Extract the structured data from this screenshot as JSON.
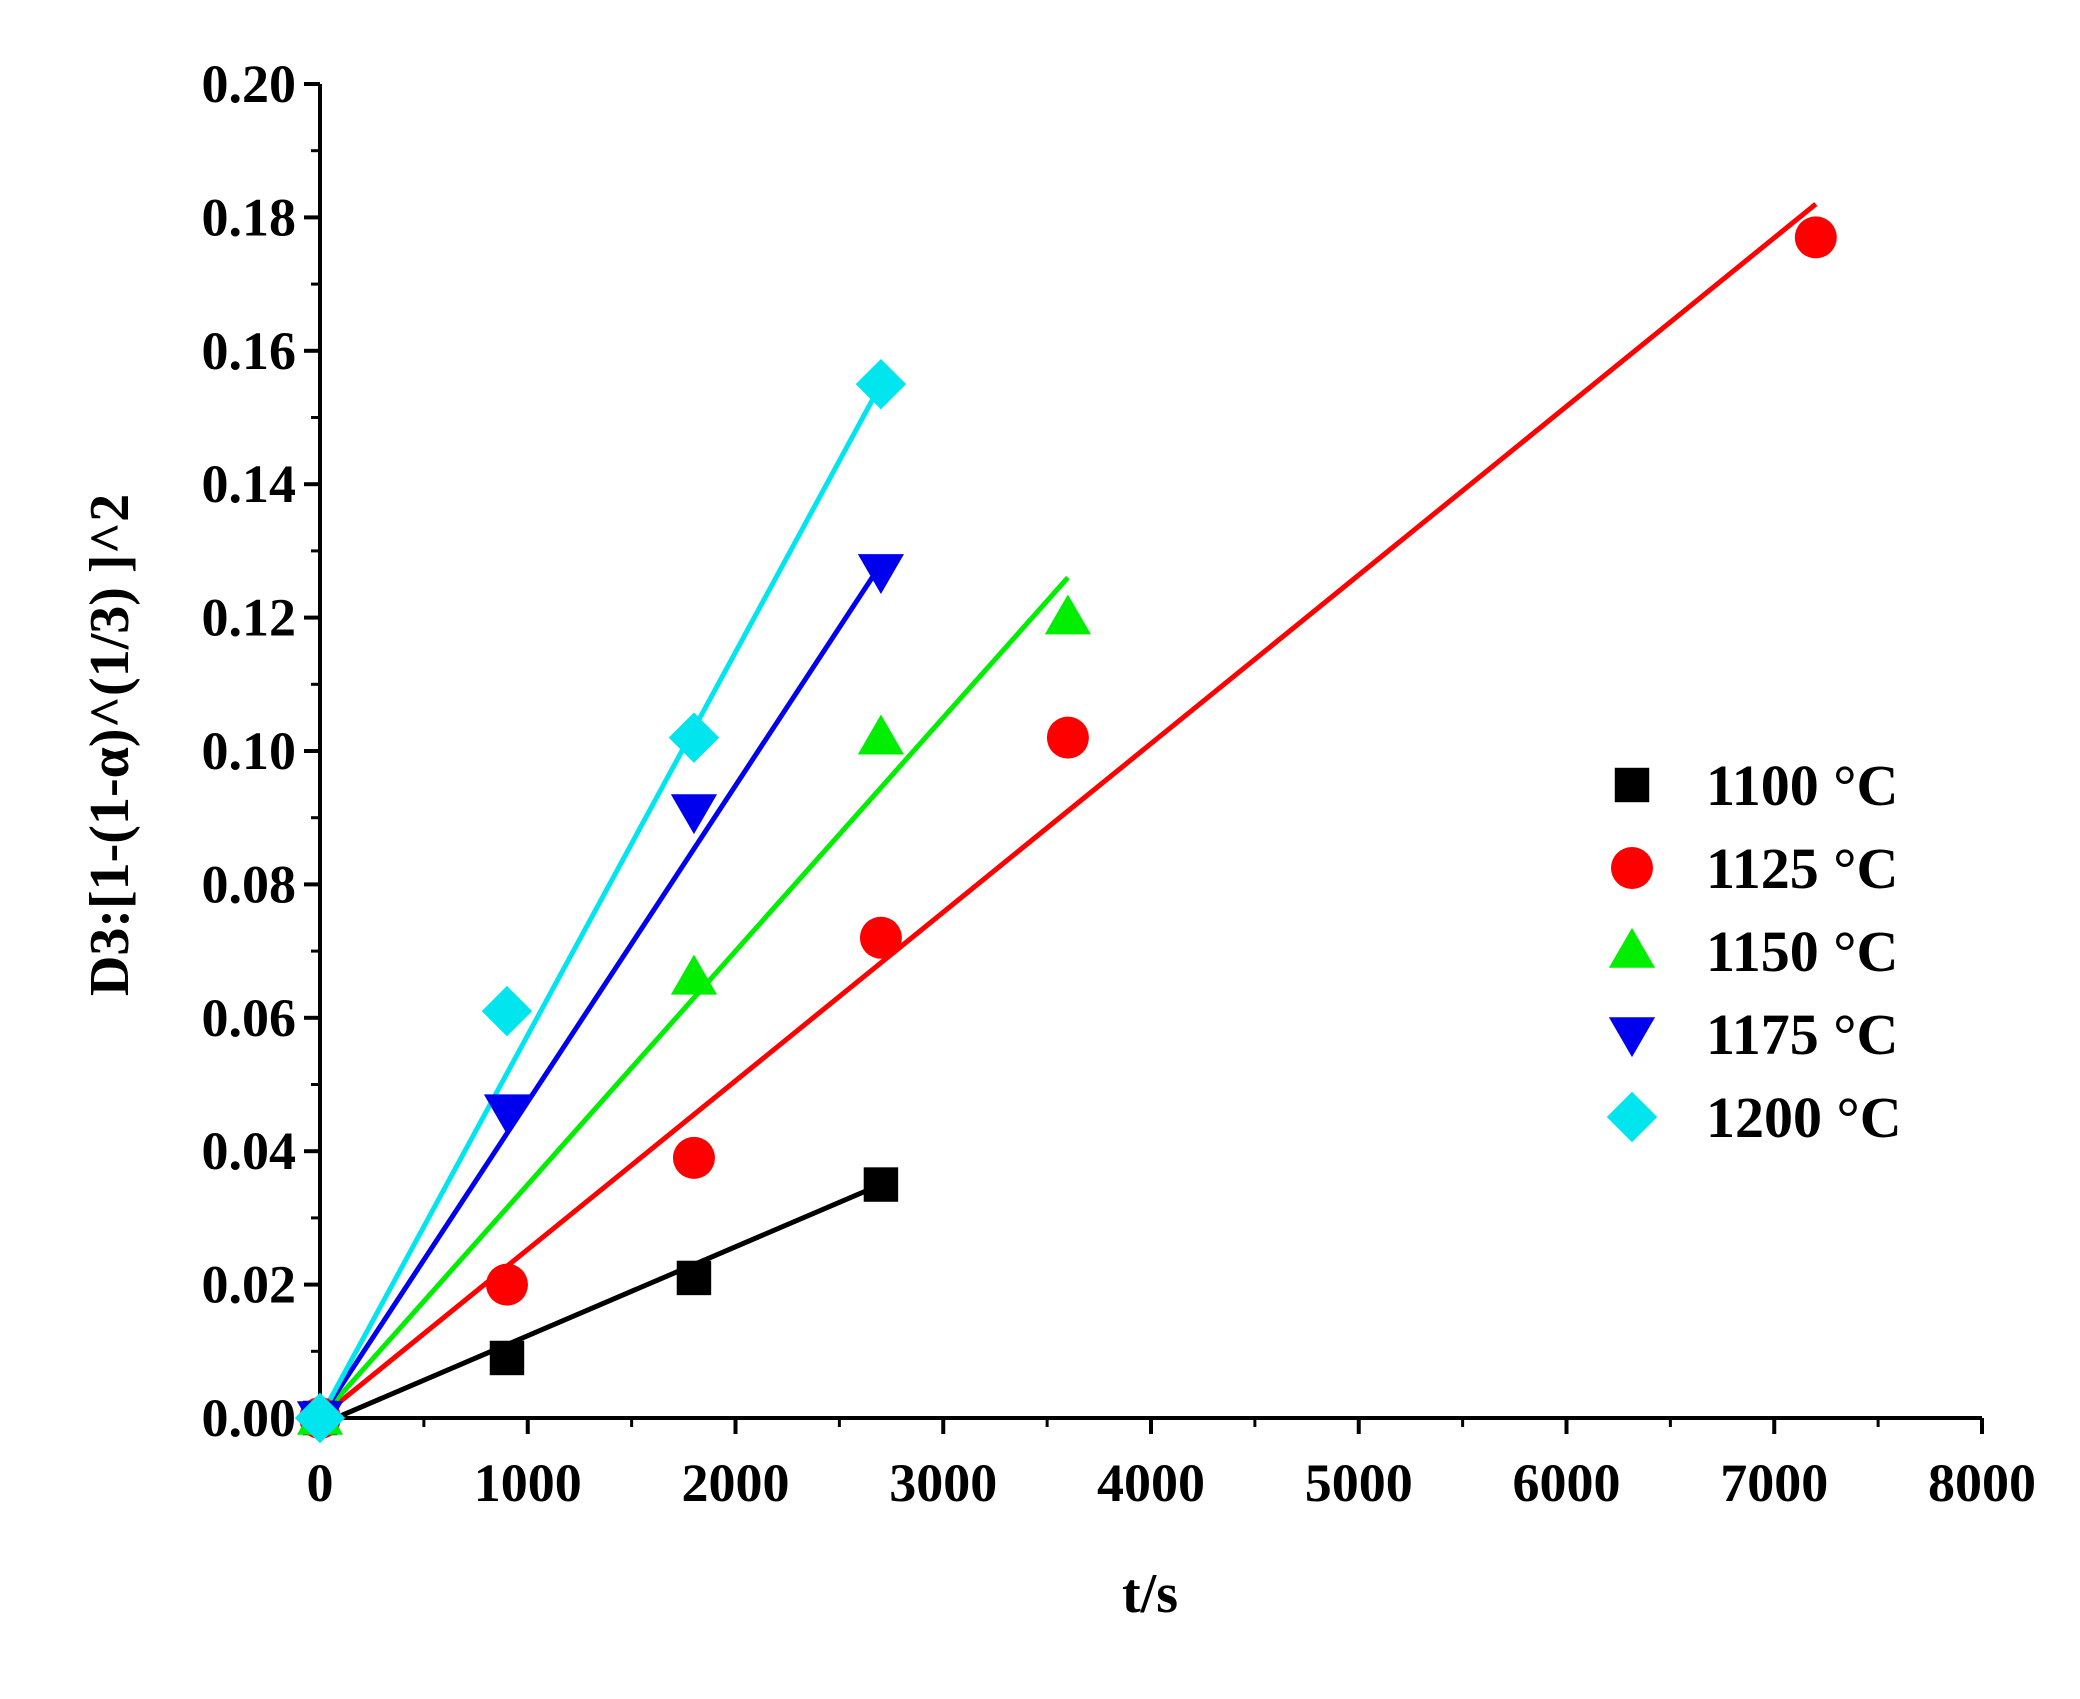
{
  "chart_data": {
    "type": "scatter",
    "title": "",
    "xlabel": "t/s",
    "ylabel": "D3:[1-(1-α)^(1/3) ]^2",
    "xlim": [
      0,
      8000
    ],
    "ylim": [
      0,
      0.2
    ],
    "x_ticks": [
      0,
      1000,
      2000,
      3000,
      4000,
      5000,
      6000,
      7000,
      8000
    ],
    "x_tick_labels": [
      "0",
      "1000",
      "2000",
      "3000",
      "4000",
      "5000",
      "6000",
      "7000",
      "8000"
    ],
    "y_ticks": [
      0,
      0.02,
      0.04,
      0.06,
      0.08,
      0.1,
      0.12,
      0.14,
      0.16,
      0.18,
      0.2
    ],
    "y_tick_labels": [
      "0.00",
      "0.02",
      "0.04",
      "0.06",
      "0.08",
      "0.10",
      "0.12",
      "0.14",
      "0.16",
      "0.18",
      "0.20"
    ],
    "grid": false,
    "legend_position": "right",
    "series": [
      {
        "name": "1100 °C",
        "color": "#000000",
        "marker": "square",
        "points": [
          [
            0,
            0
          ],
          [
            900,
            0.009
          ],
          [
            1800,
            0.021
          ],
          [
            2700,
            0.035
          ]
        ],
        "fit_line": [
          [
            0,
            -0.001
          ],
          [
            2700,
            0.035
          ]
        ]
      },
      {
        "name": "1125 °C",
        "color": "#ff0000",
        "marker": "circle",
        "points": [
          [
            0,
            0
          ],
          [
            900,
            0.02
          ],
          [
            1800,
            0.039
          ],
          [
            2700,
            0.072
          ],
          [
            3600,
            0.102
          ],
          [
            7200,
            0.177
          ]
        ],
        "fit_line": [
          [
            0,
            0
          ],
          [
            7200,
            0.182
          ]
        ]
      },
      {
        "name": "1150 °C",
        "color": "#00ee00",
        "marker": "triangle-up",
        "points": [
          [
            0,
            0
          ],
          [
            1800,
            0.066
          ],
          [
            2700,
            0.102
          ],
          [
            3600,
            0.12
          ]
        ],
        "fit_line": [
          [
            0,
            0
          ],
          [
            3600,
            0.126
          ]
        ]
      },
      {
        "name": "1175 °C",
        "color": "#0000ee",
        "marker": "triangle-down",
        "points": [
          [
            0,
            0
          ],
          [
            900,
            0.046
          ],
          [
            1800,
            0.091
          ],
          [
            2700,
            0.127
          ]
        ],
        "fit_line": [
          [
            0,
            0
          ],
          [
            2700,
            0.128
          ]
        ]
      },
      {
        "name": "1200 °C",
        "color": "#00e5ee",
        "marker": "diamond",
        "points": [
          [
            0,
            0
          ],
          [
            900,
            0.061
          ],
          [
            1800,
            0.102
          ],
          [
            2700,
            0.155
          ]
        ],
        "fit_line": [
          [
            0,
            0
          ],
          [
            2700,
            0.155
          ]
        ]
      }
    ]
  }
}
